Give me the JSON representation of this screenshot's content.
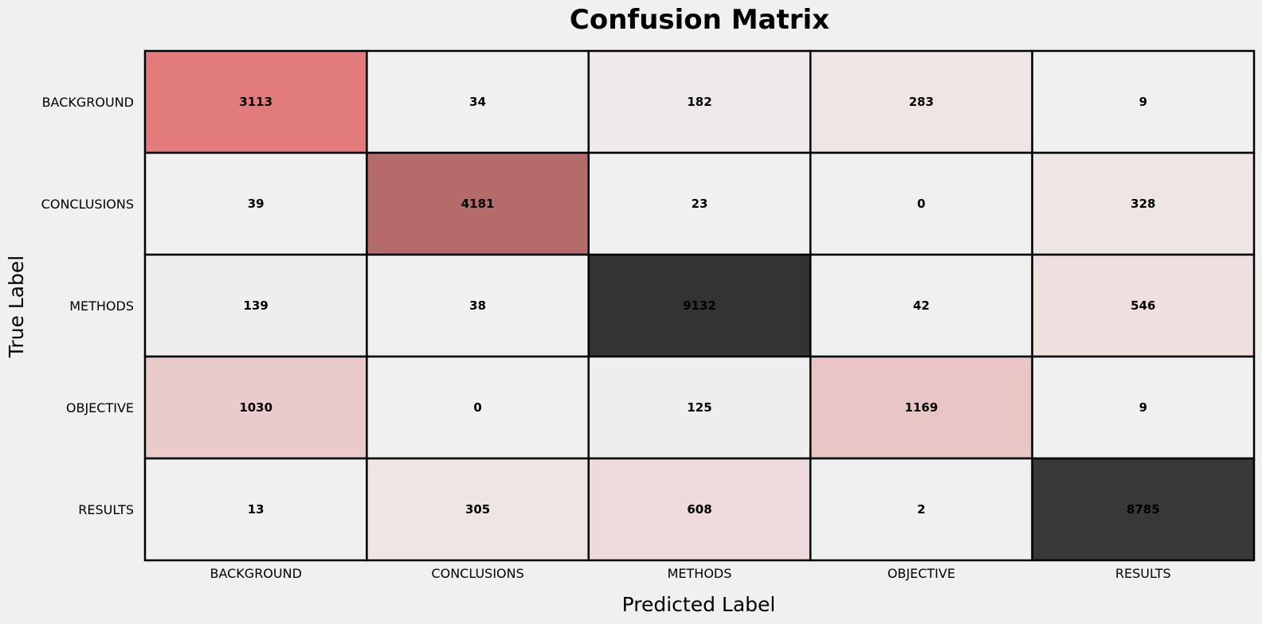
{
  "chart_data": {
    "type": "heatmap",
    "title": "Confusion Matrix",
    "xlabel": "Predicted Label",
    "ylabel": "True Label",
    "x_categories": [
      "BACKGROUND",
      "CONCLUSIONS",
      "METHODS",
      "OBJECTIVE",
      "RESULTS"
    ],
    "y_categories": [
      "BACKGROUND",
      "CONCLUSIONS",
      "METHODS",
      "OBJECTIVE",
      "RESULTS"
    ],
    "values": [
      [
        3113,
        34,
        182,
        283,
        9
      ],
      [
        39,
        4181,
        23,
        0,
        328
      ],
      [
        139,
        38,
        9132,
        42,
        546
      ],
      [
        1030,
        0,
        125,
        1169,
        9
      ],
      [
        13,
        305,
        608,
        2,
        8785
      ]
    ],
    "colorbar": false,
    "grid": true
  },
  "colors": {
    "background": "#f0f0f0",
    "cell_colors": [
      [
        "#e27c7c",
        "#f0f0f0",
        "#efe9e9",
        "#efe5e5",
        "#f0f0f0"
      ],
      [
        "#f0f0f0",
        "#b66b6b",
        "#f0f0f0",
        "#f0f0f0",
        "#efe5e5"
      ],
      [
        "#efeded",
        "#f0f0f0",
        "#333333",
        "#f0f0f0",
        "#efdfdf"
      ],
      [
        "#eacaca",
        "#f0f0f0",
        "#efeded",
        "#eac5c5",
        "#f0f0f0"
      ],
      [
        "#f0f0f0",
        "#efe5e5",
        "#eed9dc",
        "#f0f0f0",
        "#383838"
      ]
    ],
    "grid_line": "#000000",
    "text": "#000000"
  }
}
